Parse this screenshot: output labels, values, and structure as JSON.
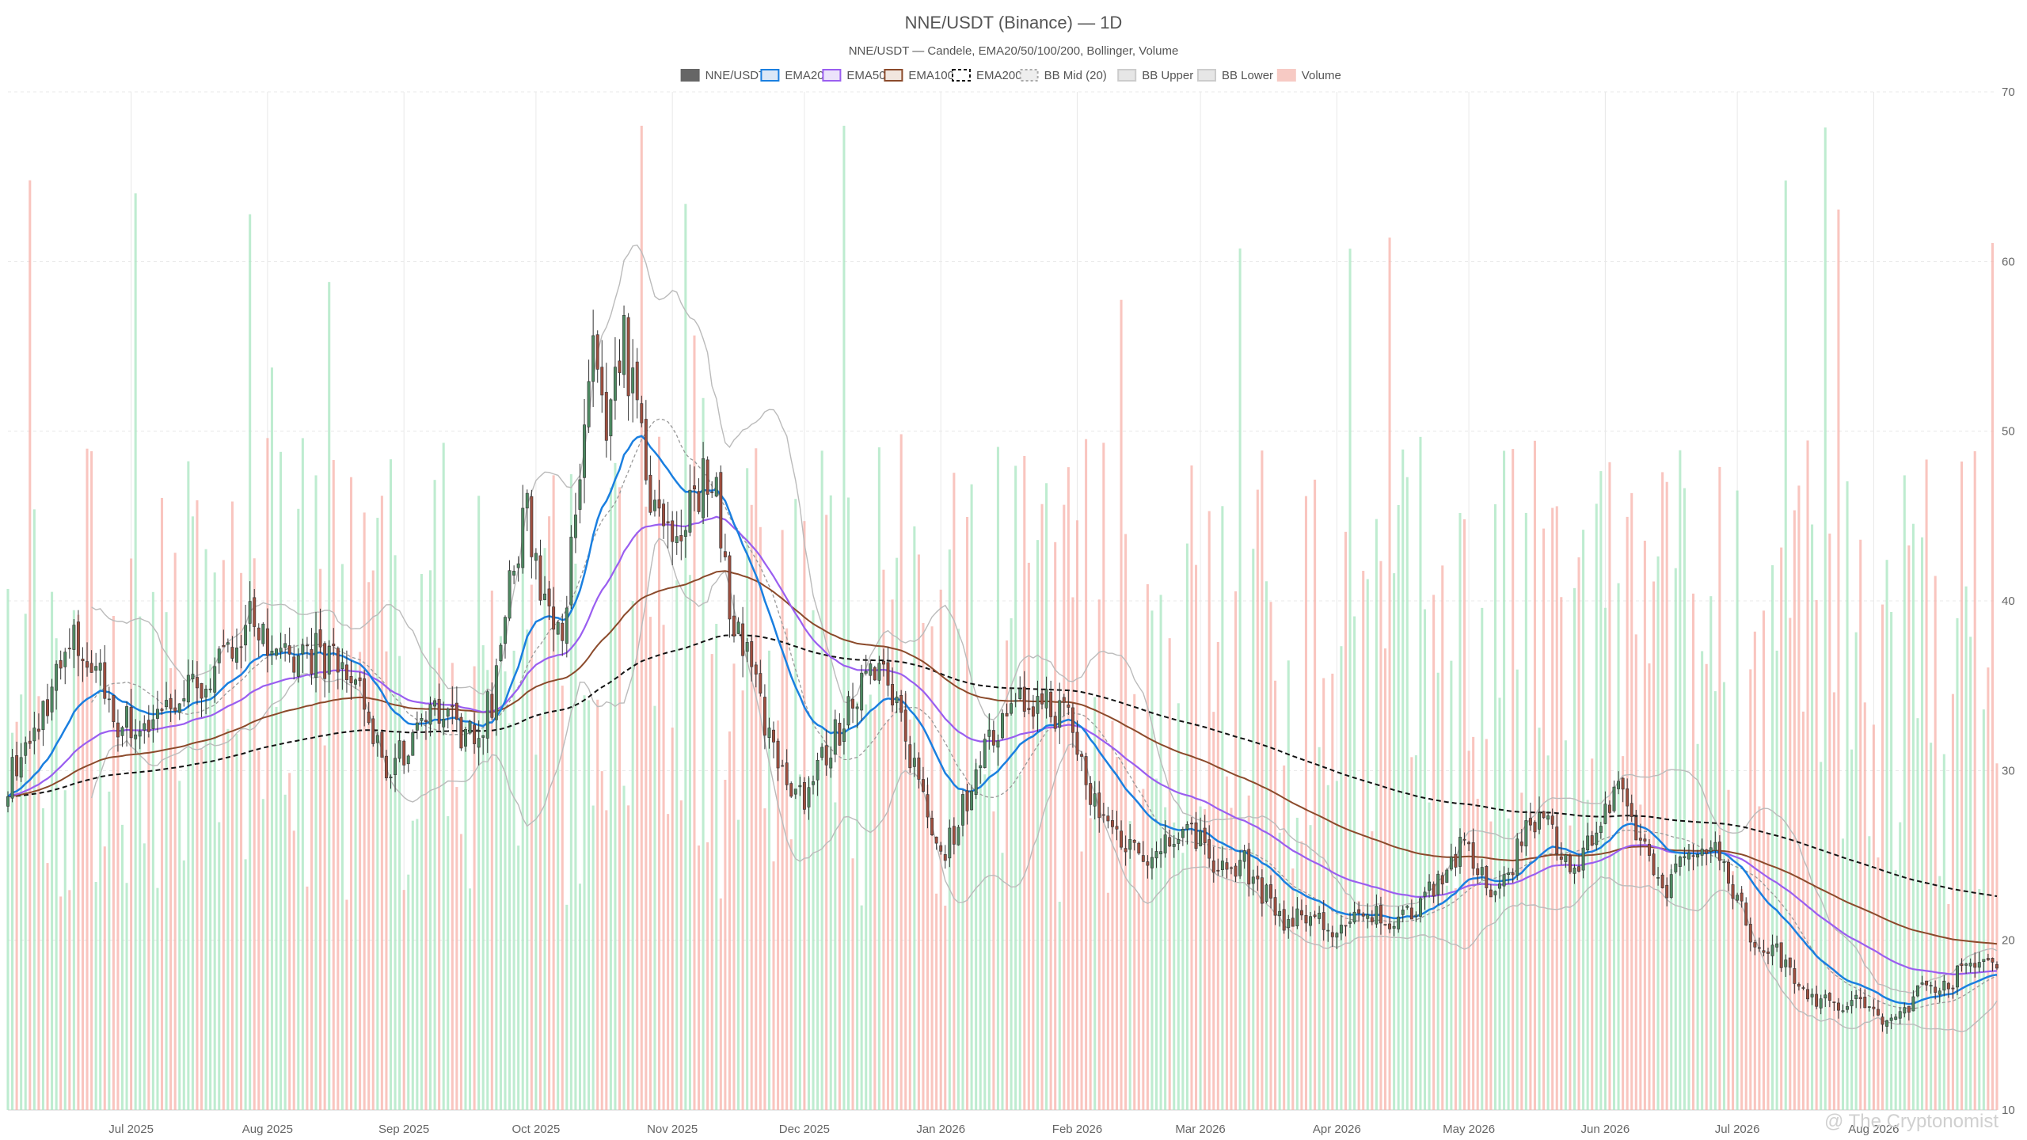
{
  "chart_data": {
    "type": "candlestick",
    "title": "NNE/USDT (Binance) — 1D",
    "subtitle": "NNE/USDT — Candele, EMA20/50/100/200, Bollinger, Volume",
    "ylim": [
      10,
      70
    ],
    "yticks": [
      10,
      20,
      30,
      40,
      50,
      60,
      70
    ],
    "y_axis_side": "right",
    "grid": true,
    "legend_position": "top-center",
    "watermark": "@ The Cryptonomist",
    "colors": {
      "up": "#4e8a62",
      "down": "#9e4e3e",
      "vol_up": "#a8e6c0",
      "vol_down": "#f7b2aa",
      "ema20": "#1a7fe0",
      "ema50": "#9a5ef0",
      "ema100": "#8b4a2b",
      "ema200": "#111111",
      "bb_mid": "#999999",
      "bb_band": "#bbbbbb",
      "grid": "#e8e8e8",
      "text": "#666666"
    },
    "legend": [
      {
        "label": "NNE/USDT",
        "key": "candles"
      },
      {
        "label": "EMA20",
        "key": "ema20"
      },
      {
        "label": "EMA50",
        "key": "ema50"
      },
      {
        "label": "EMA100",
        "key": "ema100"
      },
      {
        "label": "EMA200",
        "key": "ema200"
      },
      {
        "label": "BB Mid (20)",
        "key": "bb_mid"
      },
      {
        "label": "BB Upper",
        "key": "bb_upper"
      },
      {
        "label": "BB Lower",
        "key": "bb_lower"
      },
      {
        "label": "Volume",
        "key": "volume"
      }
    ],
    "date_range": [
      "2025-06-03",
      "2026-08-29"
    ],
    "xticks": [
      {
        "date": "2025-07-01",
        "label": "Jul 2025"
      },
      {
        "date": "2025-08-01",
        "label": "Aug 2025"
      },
      {
        "date": "2025-09-01",
        "label": "Sep 2025"
      },
      {
        "date": "2025-10-01",
        "label": "Oct 2025"
      },
      {
        "date": "2025-11-01",
        "label": "Nov 2025"
      },
      {
        "date": "2025-12-01",
        "label": "Dec 2025"
      },
      {
        "date": "2026-01-01",
        "label": "Jan 2026"
      },
      {
        "date": "2026-02-01",
        "label": "Feb 2026"
      },
      {
        "date": "2026-03-01",
        "label": "Mar 2026"
      },
      {
        "date": "2026-04-01",
        "label": "Apr 2026"
      },
      {
        "date": "2026-05-01",
        "label": "May 2026"
      },
      {
        "date": "2026-06-01",
        "label": "Jun 2026"
      },
      {
        "date": "2026-07-01",
        "label": "Jul 2026"
      },
      {
        "date": "2026-08-01",
        "label": "Aug 2026"
      }
    ],
    "close_path": [
      [
        "2025-06-03",
        29.5
      ],
      [
        "2025-06-08",
        31.5
      ],
      [
        "2025-06-13",
        35.0
      ],
      [
        "2025-06-18",
        37.5
      ],
      [
        "2025-06-23",
        36.0
      ],
      [
        "2025-06-28",
        33.0
      ],
      [
        "2025-07-03",
        32.5
      ],
      [
        "2025-07-08",
        33.5
      ],
      [
        "2025-07-13",
        34.5
      ],
      [
        "2025-07-18",
        35.5
      ],
      [
        "2025-07-23",
        36.5
      ],
      [
        "2025-07-28",
        40.0
      ],
      [
        "2025-08-02",
        36.0
      ],
      [
        "2025-08-07",
        36.5
      ],
      [
        "2025-08-12",
        37.0
      ],
      [
        "2025-08-17",
        36.0
      ],
      [
        "2025-08-22",
        35.0
      ],
      [
        "2025-08-27",
        30.0
      ],
      [
        "2025-09-01",
        31.0
      ],
      [
        "2025-09-06",
        34.0
      ],
      [
        "2025-09-11",
        33.0
      ],
      [
        "2025-09-16",
        32.0
      ],
      [
        "2025-09-21",
        34.0
      ],
      [
        "2025-09-25",
        41.0
      ],
      [
        "2025-09-29",
        45.0
      ],
      [
        "2025-10-03",
        40.0
      ],
      [
        "2025-10-07",
        39.0
      ],
      [
        "2025-10-11",
        46.0
      ],
      [
        "2025-10-14",
        56.0
      ],
      [
        "2025-10-17",
        49.0
      ],
      [
        "2025-10-21",
        55.0
      ],
      [
        "2025-10-24",
        51.0
      ],
      [
        "2025-10-28",
        45.0
      ],
      [
        "2025-11-02",
        44.0
      ],
      [
        "2025-11-06",
        46.0
      ],
      [
        "2025-11-10",
        48.0
      ],
      [
        "2025-11-14",
        40.0
      ],
      [
        "2025-11-18",
        37.0
      ],
      [
        "2025-11-22",
        33.0
      ],
      [
        "2025-11-26",
        30.0
      ],
      [
        "2025-12-01",
        28.5
      ],
      [
        "2025-12-06",
        31.0
      ],
      [
        "2025-12-11",
        33.5
      ],
      [
        "2025-12-16",
        37.0
      ],
      [
        "2025-12-20",
        35.0
      ],
      [
        "2025-12-24",
        31.5
      ],
      [
        "2025-12-28",
        29.0
      ],
      [
        "2026-01-01",
        25.0
      ],
      [
        "2026-01-05",
        27.0
      ],
      [
        "2026-01-10",
        31.0
      ],
      [
        "2026-01-15",
        32.5
      ],
      [
        "2026-01-20",
        34.0
      ],
      [
        "2026-01-25",
        34.0
      ],
      [
        "2026-01-30",
        33.0
      ],
      [
        "2026-02-04",
        28.5
      ],
      [
        "2026-02-09",
        26.5
      ],
      [
        "2026-02-14",
        25.5
      ],
      [
        "2026-02-19",
        25.0
      ],
      [
        "2026-02-24",
        26.5
      ],
      [
        "2026-03-01",
        26.0
      ],
      [
        "2026-03-06",
        24.0
      ],
      [
        "2026-03-11",
        24.5
      ],
      [
        "2026-03-16",
        22.5
      ],
      [
        "2026-03-21",
        21.0
      ],
      [
        "2026-03-26",
        21.5
      ],
      [
        "2026-03-31",
        20.5
      ],
      [
        "2026-04-05",
        21.0
      ],
      [
        "2026-04-10",
        21.5
      ],
      [
        "2026-04-15",
        21.0
      ],
      [
        "2026-04-20",
        22.5
      ],
      [
        "2026-04-25",
        24.0
      ],
      [
        "2026-04-30",
        25.5
      ],
      [
        "2026-05-05",
        23.0
      ],
      [
        "2026-05-10",
        24.0
      ],
      [
        "2026-05-15",
        27.5
      ],
      [
        "2026-05-20",
        26.5
      ],
      [
        "2026-05-25",
        24.0
      ],
      [
        "2026-05-30",
        26.5
      ],
      [
        "2026-06-04",
        28.5
      ],
      [
        "2026-06-09",
        26.0
      ],
      [
        "2026-06-14",
        23.0
      ],
      [
        "2026-06-19",
        24.5
      ],
      [
        "2026-06-24",
        26.0
      ],
      [
        "2026-06-29",
        24.0
      ],
      [
        "2026-07-04",
        20.0
      ],
      [
        "2026-07-09",
        19.5
      ],
      [
        "2026-07-14",
        18.0
      ],
      [
        "2026-07-19",
        16.5
      ],
      [
        "2026-07-24",
        16.0
      ],
      [
        "2026-07-29",
        16.5
      ],
      [
        "2026-08-03",
        15.0
      ],
      [
        "2026-08-08",
        16.0
      ],
      [
        "2026-08-13",
        17.5
      ],
      [
        "2026-08-18",
        17.5
      ],
      [
        "2026-08-23",
        18.5
      ],
      [
        "2026-08-29",
        19.0
      ]
    ],
    "volume_range_estimate": "bars fill roughly the lower half of the plot; peak ~ 60 on price scale"
  }
}
